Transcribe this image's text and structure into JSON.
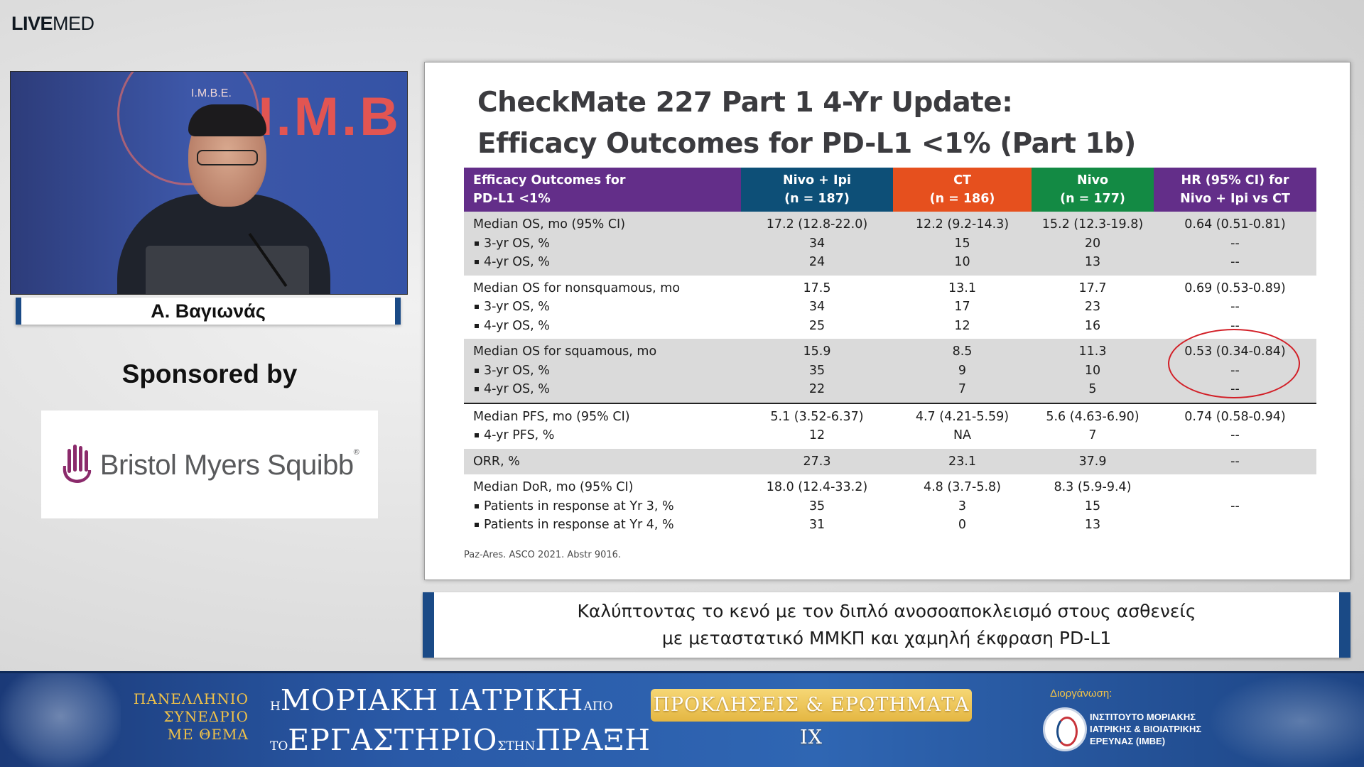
{
  "brand": {
    "live": "LIVE",
    "med": "MED"
  },
  "video": {
    "wall_text": "I.M.B",
    "emblem_label": "I.M.B.E.",
    "speaker_name": "Α. Βαγιωνάς"
  },
  "sponsor": {
    "heading": "Sponsored by",
    "name": "Bristol Myers Squibb",
    "trademark": "®"
  },
  "slide": {
    "title_line1": "CheckMate 227 Part 1 4-Yr Update:",
    "title_line2": "Efficacy Outcomes for PD-L1 <1% (Part 1b)",
    "headers": {
      "c1_l1": "Efficacy Outcomes for",
      "c1_l2": "PD-L1 <1%",
      "c2_l1": "Nivo + Ipi",
      "c2_l2": "(n = 187)",
      "c3_l1": "CT",
      "c3_l2": "(n = 186)",
      "c4_l1": "Nivo",
      "c4_l2": "(n = 177)",
      "c5_l1": "HR (95% CI) for",
      "c5_l2": "Nivo + Ipi vs CT"
    },
    "groups": [
      {
        "labels": [
          "Median OS, mo (95% CI)",
          "3-yr OS, %",
          "4-yr OS, %"
        ],
        "nivo_ipi": [
          "17.2 (12.8-22.0)",
          "34",
          "24"
        ],
        "ct": [
          "12.2 (9.2-14.3)",
          "15",
          "10"
        ],
        "nivo": [
          "15.2 (12.3-19.8)",
          "20",
          "13"
        ],
        "hr": [
          "0.64 (0.51-0.81)",
          "--",
          "--"
        ]
      },
      {
        "labels": [
          "Median OS for nonsquamous, mo",
          "3-yr OS, %",
          "4-yr OS, %"
        ],
        "nivo_ipi": [
          "17.5",
          "34",
          "25"
        ],
        "ct": [
          "13.1",
          "17",
          "12"
        ],
        "nivo": [
          "17.7",
          "23",
          "16"
        ],
        "hr": [
          "0.69 (0.53-0.89)",
          "--",
          "--"
        ]
      },
      {
        "labels": [
          "Median OS for squamous, mo",
          "3-yr OS, %",
          "4-yr OS, %"
        ],
        "nivo_ipi": [
          "15.9",
          "35",
          "22"
        ],
        "ct": [
          "8.5",
          "9",
          "7"
        ],
        "nivo": [
          "11.3",
          "10",
          "5"
        ],
        "hr": [
          "0.53 (0.34-0.84)",
          "--",
          "--"
        ]
      },
      {
        "labels": [
          "Median PFS, mo (95% CI)",
          "4-yr PFS, %"
        ],
        "nivo_ipi": [
          "5.1 (3.52-6.37)",
          "12"
        ],
        "ct": [
          "4.7 (4.21-5.59)",
          "NA"
        ],
        "nivo": [
          "5.6 (4.63-6.90)",
          "7"
        ],
        "hr": [
          "0.74 (0.58-0.94)",
          "--"
        ]
      },
      {
        "labels": [
          "ORR, %"
        ],
        "nivo_ipi": [
          "27.3"
        ],
        "ct": [
          "23.1"
        ],
        "nivo": [
          "37.9"
        ],
        "hr": [
          "--"
        ]
      },
      {
        "labels": [
          "Median DoR, mo (95% CI)",
          "Patients in response at Yr 3, %",
          "Patients in response at Yr 4, %"
        ],
        "nivo_ipi": [
          "18.0 (12.4-33.2)",
          "35",
          "31"
        ],
        "ct": [
          "4.8 (3.7-5.8)",
          "3",
          "0"
        ],
        "nivo": [
          "8.3 (5.9-9.4)",
          "15",
          "13"
        ],
        "hr": [
          "",
          "--",
          ""
        ]
      }
    ],
    "citation": "Paz-Ares. ASCO 2021. Abstr 9016."
  },
  "caption": {
    "line1": "Καλύπτοντας το κενό με τον διπλό ανοσοαποκλεισμό στους ασθενείς",
    "line2": "με μεταστατικό ΜΜΚΠ και χαμηλή έκφραση PD-L1"
  },
  "banner": {
    "left_l1": "ΠΑΝΕΛΛΗΝΙΟ",
    "left_l2": "ΣΥΝΕΔΡΙΟ",
    "left_l3": "ΜΕ ΘΕΜΑ",
    "t1_prefix": "Η",
    "t1_main": "ΜΟΡΙΑΚΗ ΙΑΤΡΙΚΗ",
    "t1_suffix": "ΑΠΟ",
    "t2_prefix": "ΤΟ",
    "t2_main": "ΕΡΓΑΣΤΗΡΙΟ",
    "t2_mid": "ΣΤΗΝ",
    "t2_end": "ΠΡΑΞΗ",
    "challenge": "ΠΡΟΚΛΗΣΕΙΣ & ΕΡΩΤΗΜΑΤΑ IX",
    "org_label": "Διοργάνωση:",
    "org_l1": "ΙΝΣΤΙΤΟΥΤΟ ΜΟΡΙΑΚΗΣ",
    "org_l2": "ΙΑΤΡΙΚΗΣ & ΒΙΟΙΑΤΡΙΚΗΣ",
    "org_l3": "ΕΡΕΥΝΑΣ (IMBE)"
  },
  "colors": {
    "header_purple": "#632e89",
    "header_blue": "#0d4f77",
    "header_orange": "#e6501e",
    "header_green": "#138a44",
    "highlight_circle": "#d21e26",
    "banner_gold": "#f1c248"
  }
}
